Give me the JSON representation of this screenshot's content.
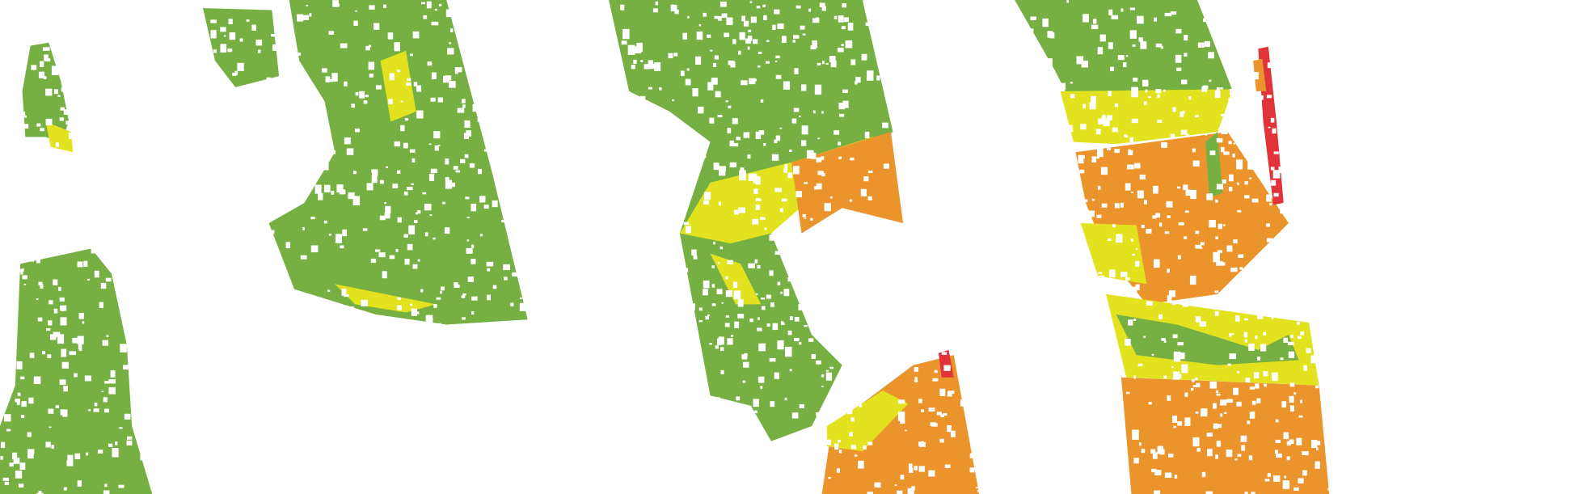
{
  "map": {
    "type": "classified satellite swaths",
    "panel_count": 4,
    "class_colors": {
      "green": "#76b043",
      "yellow": "#e2e21e",
      "orange": "#ec942c",
      "red": "#e0333a"
    },
    "background": "#ffffff"
  }
}
